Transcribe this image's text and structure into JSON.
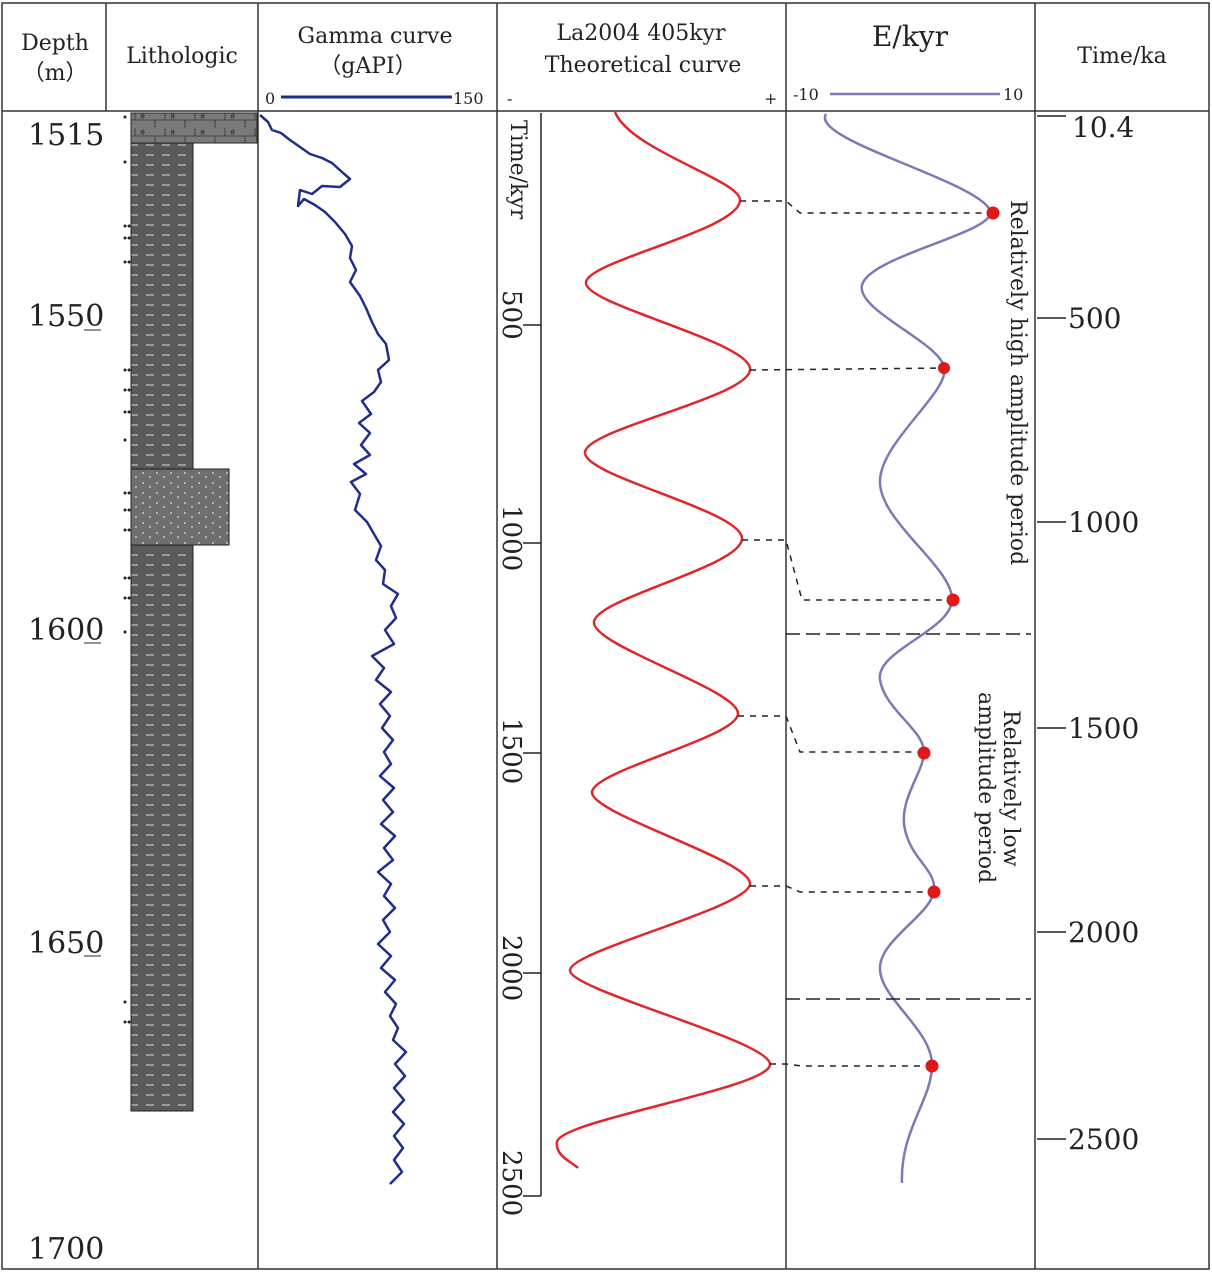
{
  "headers": {
    "depth": [
      "Depth",
      "（m）"
    ],
    "lithologic": "Lithologic",
    "gamma": [
      "Gamma  curve",
      "（gAPI）"
    ],
    "la2004": [
      "La2004 405kyr",
      "Theoretical curve"
    ],
    "ekyr": "E/kyr",
    "time": "Time/ka"
  },
  "scales": {
    "gamma_min": "0",
    "gamma_max": "150",
    "la_minus": "-",
    "la_plus": "+",
    "e_min": "-10",
    "e_max": "10"
  },
  "colors": {
    "gamma_curve": "#1f2d8c",
    "theoretical_curve": "#e0262a",
    "e_curve": "#7a7ab8",
    "marker": "#e01818",
    "lithology_fill": "#5a5a5a",
    "lithology_sandstone": "#6e6e6e"
  },
  "depth_axis": {
    "labels": [
      "1515",
      "1550",
      "1600",
      "1650",
      "1700"
    ]
  },
  "inner_time_axis": {
    "title": "Time/kyr",
    "ticks": [
      "500",
      "1000",
      "1500",
      "2000",
      "2500"
    ]
  },
  "time_axis": {
    "labels": [
      "10.4",
      "500",
      "1000",
      "1500",
      "2000",
      "2500"
    ]
  },
  "annotations": {
    "high_period": "Relatively high amplitude period",
    "low_period": [
      "Relatively low",
      "amplitude period"
    ]
  }
}
